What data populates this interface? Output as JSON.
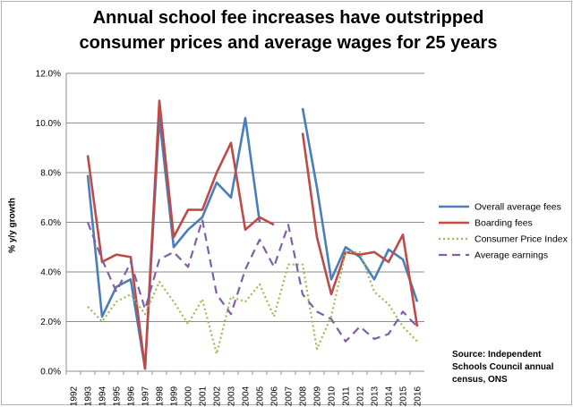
{
  "chart_data": {
    "type": "line",
    "title_line1": "Annual school fee increases have outstripped",
    "title_line2": "consumer prices and average wages for 25 years",
    "ylabel": "% y/y growth",
    "ylim": [
      0,
      12
    ],
    "yticks": [
      "0.0%",
      "2.0%",
      "4.0%",
      "6.0%",
      "8.0%",
      "10.0%",
      "12.0%"
    ],
    "x": [
      "1992",
      "1993",
      "1994",
      "1995",
      "1996",
      "1997",
      "1998",
      "1999",
      "2000",
      "2001",
      "2002",
      "2003",
      "2004",
      "2005",
      "2006",
      "2007",
      "2008",
      "2009",
      "2010",
      "2011",
      "2012",
      "2013",
      "2014",
      "2015",
      "2016"
    ],
    "grid": true,
    "legend_position": "right",
    "series": [
      {
        "name": "Overall average fees",
        "color": "#4a7ebb",
        "dash": "solid",
        "values": [
          null,
          7.9,
          2.2,
          3.4,
          3.7,
          0.1,
          10.2,
          5.0,
          5.7,
          6.2,
          7.6,
          7.0,
          10.2,
          6.0,
          null,
          null,
          10.6,
          7.4,
          3.7,
          5.0,
          4.6,
          3.7,
          4.9,
          4.5,
          2.8
        ]
      },
      {
        "name": "Boarding fees",
        "color": "#be4b48",
        "dash": "solid",
        "values": [
          null,
          8.7,
          4.4,
          4.7,
          4.6,
          0.1,
          10.9,
          5.4,
          6.5,
          6.5,
          8.0,
          9.2,
          5.7,
          6.2,
          5.9,
          null,
          9.6,
          5.4,
          3.1,
          4.8,
          4.7,
          4.8,
          4.4,
          5.5,
          1.8
        ]
      },
      {
        "name": "Consumer Price Index",
        "color": "#9bbb59",
        "dash": "dotted",
        "values": [
          null,
          2.6,
          2.0,
          2.8,
          3.1,
          2.3,
          3.6,
          2.8,
          1.9,
          2.9,
          0.7,
          3.0,
          2.8,
          3.5,
          2.2,
          4.3,
          4.3,
          0.9,
          2.2,
          4.8,
          4.8,
          3.2,
          2.7,
          1.8,
          1.2
        ]
      },
      {
        "name": "Average earnings",
        "color": "#7f5fa8",
        "dash": "dashed",
        "values": [
          null,
          6.0,
          4.5,
          3.2,
          4.4,
          2.5,
          4.5,
          4.8,
          4.2,
          6.1,
          3.1,
          2.3,
          4.1,
          5.3,
          4.2,
          5.9,
          3.1,
          2.4,
          2.1,
          1.2,
          1.8,
          1.3,
          1.5,
          2.4,
          1.8
        ]
      }
    ]
  },
  "source": {
    "line1": "Source:  Independent",
    "line2": "Schools Council  annual",
    "line3": "census, ONS"
  }
}
